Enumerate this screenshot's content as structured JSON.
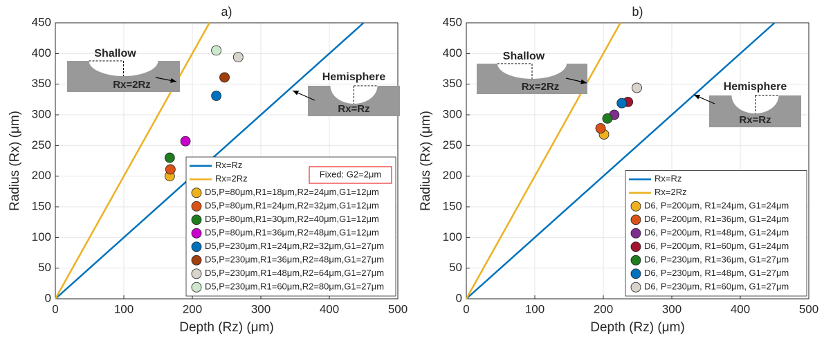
{
  "chart_data": [
    {
      "type": "scatter",
      "title": "a)",
      "xlabel": "Depth (Rz) (μm)",
      "ylabel": "Radius (Rx) (μm)",
      "xlim": [
        0,
        500
      ],
      "xticks": [
        0,
        100,
        200,
        300,
        400,
        500
      ],
      "ylim": [
        0,
        450
      ],
      "yticks": [
        0,
        50,
        100,
        150,
        200,
        250,
        300,
        350,
        400,
        450
      ],
      "grid": true,
      "legend": "lower right",
      "annotations": [
        "Shallow",
        "Rx=2Rz",
        "Hemisphere",
        "Rx=Rz"
      ],
      "note": "Fixed: G2=2μm",
      "series": [
        {
          "name": "Rx=Rz",
          "type": "line",
          "color": "#0072bd",
          "x": [
            0,
            450
          ],
          "values": [
            0,
            450
          ]
        },
        {
          "name": "Rx=2Rz",
          "type": "line",
          "color": "#edb120",
          "x": [
            0,
            225
          ],
          "values": [
            0,
            450
          ]
        },
        {
          "name": "D5,P=80μm,R1=18μm,R2=24μm,G1=12μm",
          "type": "scatter",
          "color": "#edb120",
          "x": [
            167
          ],
          "values": [
            200
          ]
        },
        {
          "name": "D5,P=80μm,R1=24μm,R2=32μm,G1=12μm",
          "type": "scatter",
          "color": "#d95319",
          "x": [
            168
          ],
          "values": [
            211
          ]
        },
        {
          "name": "D5,P=80μm,R1=30μm,R2=40μm,G1=12μm",
          "type": "scatter",
          "color": "#1e7d1e",
          "x": [
            167
          ],
          "values": [
            230
          ]
        },
        {
          "name": "D5,P=80μm,R1=36μm,R2=48μm,G1=12μm",
          "type": "scatter",
          "color": "#cc00cc",
          "x": [
            190
          ],
          "values": [
            257
          ]
        },
        {
          "name": "D5,P=230μm,R1=24μm,R2=32μm,G1=27μm",
          "type": "scatter",
          "color": "#0072bd",
          "x": [
            235
          ],
          "values": [
            331
          ]
        },
        {
          "name": "D5,P=230μm,R1=36μm,R2=48μm,G1=27μm",
          "type": "scatter",
          "color": "#a0400f",
          "x": [
            247
          ],
          "values": [
            361
          ]
        },
        {
          "name": "D5,P=230μm,R1=48μm,R2=64μm,G1=27μm",
          "type": "scatter",
          "color": "#d8d4cc",
          "x": [
            267
          ],
          "values": [
            394
          ]
        },
        {
          "name": "D5,P=230μm,R1=60μm,R2=80μm,G1=27μm",
          "type": "scatter",
          "color": "#cde8cd",
          "x": [
            235
          ],
          "values": [
            405
          ]
        }
      ]
    },
    {
      "type": "scatter",
      "title": "b)",
      "xlabel": "Depth (Rz) (μm)",
      "ylabel": "Radius (Rx) (μm)",
      "xlim": [
        0,
        500
      ],
      "xticks": [
        0,
        100,
        200,
        300,
        400,
        500
      ],
      "ylim": [
        0,
        450
      ],
      "yticks": [
        0,
        50,
        100,
        150,
        200,
        250,
        300,
        350,
        400,
        450
      ],
      "grid": true,
      "legend": "lower right",
      "annotations": [
        "Shallow",
        "Rx=2Rz",
        "Hemisphere",
        "Rx=Rz"
      ],
      "series": [
        {
          "name": "Rx=Rz",
          "type": "line",
          "color": "#0072bd",
          "x": [
            0,
            450
          ],
          "values": [
            0,
            450
          ]
        },
        {
          "name": "Rx=2Rz",
          "type": "line",
          "color": "#edb120",
          "x": [
            0,
            225
          ],
          "values": [
            0,
            450
          ]
        },
        {
          "name": "D6, P=200μm, R1=24μm, G1=24μm",
          "type": "scatter",
          "color": "#edb120",
          "x": [
            201
          ],
          "values": [
            268
          ]
        },
        {
          "name": "D6, P=200μm, R1=36μm, G1=24μm",
          "type": "scatter",
          "color": "#d95319",
          "x": [
            196
          ],
          "values": [
            278
          ]
        },
        {
          "name": "D6, P=200μm, R1=48μm, G1=24μm",
          "type": "scatter",
          "color": "#7e2f8e",
          "x": [
            216
          ],
          "values": [
            300
          ]
        },
        {
          "name": "D6, P=200μm, R1=60μm, G1=24μm",
          "type": "scatter",
          "color": "#a2142f",
          "x": [
            236
          ],
          "values": [
            321
          ]
        },
        {
          "name": "D6, P=230μm, R1=36μm, G1=27μm",
          "type": "scatter",
          "color": "#1e7d1e",
          "x": [
            206
          ],
          "values": [
            294
          ]
        },
        {
          "name": "D6, P=230μm, R1=48μm, G1=27μm",
          "type": "scatter",
          "color": "#0072bd",
          "x": [
            227
          ],
          "values": [
            319
          ]
        },
        {
          "name": "D6, P=230μm, R1=60μm, G1=27μm",
          "type": "scatter",
          "color": "#d8d4cc",
          "x": [
            249
          ],
          "values": [
            344
          ]
        }
      ]
    }
  ]
}
